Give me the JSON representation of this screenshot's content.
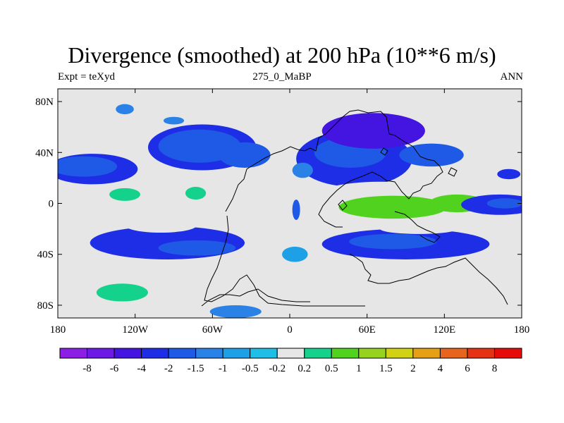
{
  "header": {
    "title": "Divergence (smoothed) at 200 hPa (10**6 m/s)",
    "left_label": "Expt = teXyd",
    "center_label": "275_0_MaBP",
    "right_label": "ANN"
  },
  "chart_data": {
    "type": "heatmap",
    "title": "Divergence (smoothed) at 200 hPa (10**6 m/s)",
    "subtitle": "275_0_MaBP",
    "xlim": [
      -180,
      180
    ],
    "ylim": [
      -90,
      90
    ],
    "x_ticks": [
      {
        "value": -180,
        "label": "180"
      },
      {
        "value": -120,
        "label": "120W"
      },
      {
        "value": -60,
        "label": "60W"
      },
      {
        "value": 0,
        "label": "0"
      },
      {
        "value": 60,
        "label": "60E"
      },
      {
        "value": 120,
        "label": "120E"
      },
      {
        "value": 180,
        "label": "180"
      }
    ],
    "y_ticks": [
      {
        "value": 80,
        "label": "80N"
      },
      {
        "value": 40,
        "label": "40N"
      },
      {
        "value": 0,
        "label": "0"
      },
      {
        "value": -40,
        "label": "40S"
      },
      {
        "value": -80,
        "label": "80S"
      }
    ],
    "colorbar": {
      "labels": [
        "-8",
        "-6",
        "-4",
        "-2",
        "-1.5",
        "-1",
        "-0.5",
        "-0.2",
        "0.2",
        "0.5",
        "1",
        "1.5",
        "2",
        "4",
        "6",
        "8"
      ],
      "colors": [
        "#8c1ee6",
        "#6e1ae6",
        "#4414e0",
        "#1e2ee6",
        "#1e5ae6",
        "#2a82e6",
        "#1ea0e6",
        "#1ebee6",
        "#e6e6e6",
        "#14d28c",
        "#50d21e",
        "#96d21e",
        "#d2d214",
        "#e6a014",
        "#e6641e",
        "#e63214",
        "#e60a0a"
      ]
    },
    "regions": [
      {
        "level": 8,
        "lon": -153,
        "lat": 6,
        "rx": 25,
        "ry": 11
      },
      {
        "level": 8,
        "lon": -73,
        "lat": 9,
        "rx": 30,
        "ry": 15
      },
      {
        "level": 8,
        "lon": -12,
        "lat": 4,
        "rx": 22,
        "ry": 8
      },
      {
        "level": 9,
        "lon": -128,
        "lat": 7,
        "rx": 12,
        "ry": 5
      },
      {
        "level": 9,
        "lon": -73,
        "lat": 8,
        "rx": 8,
        "ry": 5
      },
      {
        "level": 3,
        "lon": -153,
        "lat": 27,
        "rx": 35,
        "ry": 12
      },
      {
        "level": 4,
        "lon": -160,
        "lat": 29,
        "rx": 26,
        "ry": 8
      },
      {
        "level": 3,
        "lon": -68,
        "lat": 44,
        "rx": 42,
        "ry": 18
      },
      {
        "level": 4,
        "lon": -70,
        "lat": 45,
        "rx": 32,
        "ry": 13
      },
      {
        "level": 4,
        "lon": -35,
        "lat": 38,
        "rx": 20,
        "ry": 10
      },
      {
        "level": 3,
        "lon": 50,
        "lat": 35,
        "rx": 45,
        "ry": 22
      },
      {
        "level": 4,
        "lon": 47,
        "lat": 40,
        "rx": 28,
        "ry": 12
      },
      {
        "level": 4,
        "lon": 110,
        "lat": 38,
        "rx": 25,
        "ry": 9
      },
      {
        "level": 2,
        "lon": 65,
        "lat": 57,
        "rx": 40,
        "ry": 14
      },
      {
        "level": 8,
        "lon": 70,
        "lat": 3,
        "rx": 55,
        "ry": 14
      },
      {
        "level": 10,
        "lon": 80,
        "lat": -3,
        "rx": 42,
        "ry": 9
      },
      {
        "level": 10,
        "lon": 130,
        "lat": 0,
        "rx": 22,
        "ry": 7
      },
      {
        "level": 3,
        "lon": 163,
        "lat": -1,
        "rx": 30,
        "ry": 8
      },
      {
        "level": 4,
        "lon": 167,
        "lat": 0,
        "rx": 14,
        "ry": 4
      },
      {
        "level": 3,
        "lon": -95,
        "lat": -31,
        "rx": 60,
        "ry": 13
      },
      {
        "level": 4,
        "lon": -72,
        "lat": -35,
        "rx": 30,
        "ry": 6
      },
      {
        "level": 3,
        "lon": 90,
        "lat": -32,
        "rx": 65,
        "ry": 12
      },
      {
        "level": 4,
        "lon": 80,
        "lat": -30,
        "rx": 34,
        "ry": 6
      },
      {
        "level": 8,
        "lon": -170,
        "lat": -13,
        "rx": 15,
        "ry": 6
      },
      {
        "level": 8,
        "lon": -100,
        "lat": -17,
        "rx": 28,
        "ry": 6
      },
      {
        "level": 8,
        "lon": 100,
        "lat": -20,
        "rx": 30,
        "ry": 4
      },
      {
        "level": 9,
        "lon": -130,
        "lat": -70,
        "rx": 20,
        "ry": 7
      },
      {
        "level": 8,
        "lon": 83,
        "lat": -75,
        "rx": 25,
        "ry": 8
      },
      {
        "level": 8,
        "lon": 138,
        "lat": -53,
        "rx": 18,
        "ry": 5
      },
      {
        "level": 6,
        "lon": 4,
        "lat": -40,
        "rx": 10,
        "ry": 6
      },
      {
        "level": 5,
        "lon": -42,
        "lat": -85,
        "rx": 20,
        "ry": 5
      },
      {
        "level": 5,
        "lon": 10,
        "lat": 26,
        "rx": 8,
        "ry": 6
      },
      {
        "level": 4,
        "lon": 5,
        "lat": -5,
        "rx": 3,
        "ry": 8
      },
      {
        "level": 5,
        "lon": -128,
        "lat": 74,
        "rx": 7,
        "ry": 4
      },
      {
        "level": 5,
        "lon": -90,
        "lat": 65,
        "rx": 8,
        "ry": 3
      },
      {
        "level": 3,
        "lon": 170,
        "lat": 23,
        "rx": 9,
        "ry": 4
      }
    ]
  }
}
